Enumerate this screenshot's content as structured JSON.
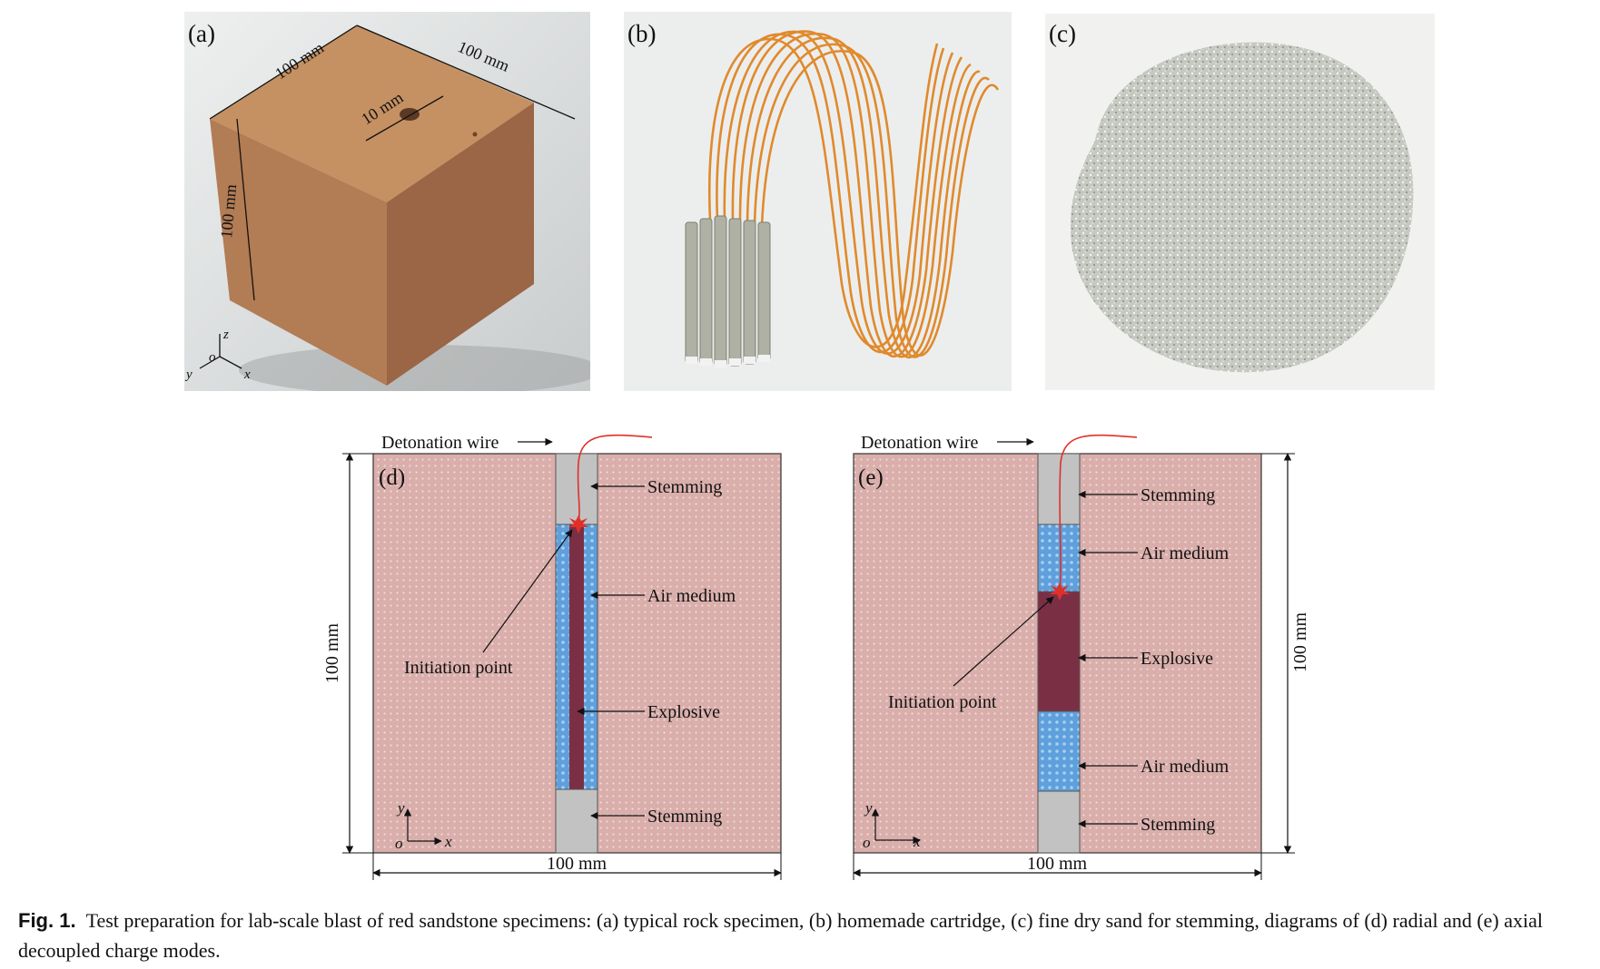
{
  "panels": {
    "a": {
      "label": "(a)",
      "dim_top_left": "100 mm",
      "dim_top_right": "100 mm",
      "dim_left": "100 mm",
      "dim_hole": "10 mm",
      "axis_z": "z",
      "axis_y": "y",
      "axis_x": "x",
      "axis_o": "o"
    },
    "b": {
      "label": "(b)"
    },
    "c": {
      "label": "(c)"
    },
    "d": {
      "label": "(d)",
      "detonation_wire": "Detonation wire",
      "stemming_top": "Stemming",
      "air_medium": "Air medium",
      "initiation_point": "Initiation point",
      "explosive": "Explosive",
      "stemming_bottom": "Stemming",
      "dim_height": "100 mm",
      "dim_width": "100 mm",
      "axis_y": "y",
      "axis_x": "x",
      "axis_o": "o"
    },
    "e": {
      "label": "(e)",
      "detonation_wire": "Detonation wire",
      "stemming_top": "Stemming",
      "air_medium_top": "Air medium",
      "explosive": "Explosive",
      "initiation_point": "Initiation point",
      "air_medium_bottom": "Air medium",
      "stemming_bottom": "Stemming",
      "dim_height": "100 mm",
      "dim_width": "100 mm",
      "axis_y": "y",
      "axis_x": "x",
      "axis_o": "o"
    }
  },
  "caption": {
    "prefix": "Fig. 1.",
    "text": "Test preparation for lab-scale blast of red sandstone specimens: (a) typical rock specimen, (b) homemade cartridge, (c) fine dry sand for stemming, diagrams of (d) radial and (e) axial decoupled charge modes."
  },
  "colors": {
    "rock": "#d9aeab",
    "stemming": "#c2c2c2",
    "air": "#5e9fdc",
    "explosive": "#7b2f45",
    "wire": "#e0302a"
  }
}
